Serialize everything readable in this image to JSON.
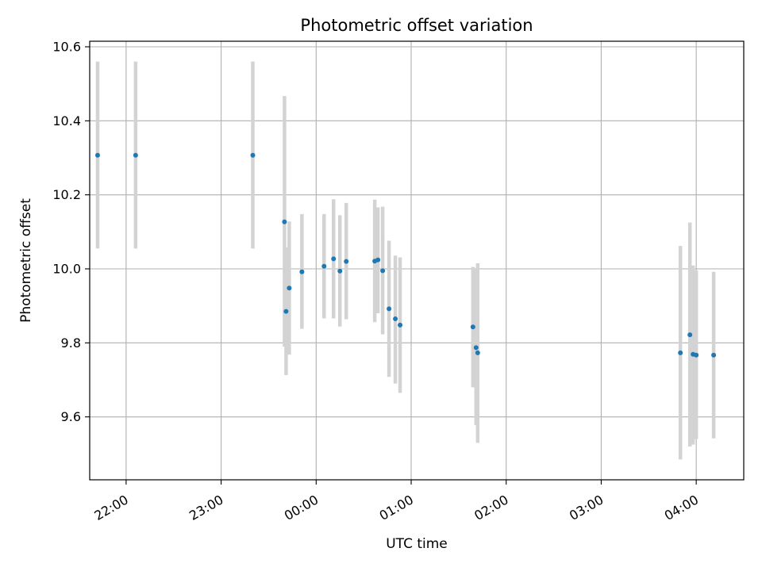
{
  "chart_data": {
    "type": "scatter",
    "title": "Photometric offset variation",
    "xlabel": "UTC time",
    "ylabel": "Photometric offset",
    "x_axis": "time",
    "x_start_time": "21:37",
    "x_end_time": "04:30",
    "xticks": [
      "22:00",
      "23:00",
      "00:00",
      "01:00",
      "02:00",
      "03:00",
      "04:00"
    ],
    "ylim": [
      9.43,
      10.615
    ],
    "yticks": [
      9.6,
      9.8,
      10.0,
      10.2,
      10.4,
      10.6
    ],
    "ytick_labels": [
      "9.6",
      "9.8",
      "10.0",
      "10.2",
      "10.4",
      "10.6"
    ],
    "grid": true,
    "colors": {
      "marker": "#1f77b4",
      "errorbar": "#d3d3d3",
      "grid": "#b0b0b0"
    },
    "points": [
      {
        "time": "21:42",
        "y": 10.307,
        "ylow": 10.055,
        "yhigh": 10.56
      },
      {
        "time": "22:06",
        "y": 10.307,
        "ylow": 10.055,
        "yhigh": 10.56
      },
      {
        "time": "23:20",
        "y": 10.307,
        "ylow": 10.055,
        "yhigh": 10.56
      },
      {
        "time": "23:40",
        "y": 10.127,
        "ylow": 9.79,
        "yhigh": 10.467
      },
      {
        "time": "23:41",
        "y": 9.885,
        "ylow": 9.713,
        "yhigh": 10.058
      },
      {
        "time": "23:43",
        "y": 9.948,
        "ylow": 9.768,
        "yhigh": 10.128
      },
      {
        "time": "23:51",
        "y": 9.992,
        "ylow": 9.838,
        "yhigh": 10.148
      },
      {
        "time": "00:05",
        "y": 10.007,
        "ylow": 9.866,
        "yhigh": 10.148
      },
      {
        "time": "00:11",
        "y": 10.027,
        "ylow": 9.866,
        "yhigh": 10.188
      },
      {
        "time": "00:15",
        "y": 9.994,
        "ylow": 9.844,
        "yhigh": 10.145
      },
      {
        "time": "00:19",
        "y": 10.02,
        "ylow": 9.864,
        "yhigh": 10.178
      },
      {
        "time": "00:37",
        "y": 10.021,
        "ylow": 9.856,
        "yhigh": 10.187
      },
      {
        "time": "00:39",
        "y": 10.024,
        "ylow": 9.88,
        "yhigh": 10.166
      },
      {
        "time": "00:42",
        "y": 9.995,
        "ylow": 9.823,
        "yhigh": 10.168
      },
      {
        "time": "00:46",
        "y": 9.892,
        "ylow": 9.708,
        "yhigh": 10.076
      },
      {
        "time": "00:50",
        "y": 9.865,
        "ylow": 9.69,
        "yhigh": 10.036
      },
      {
        "time": "00:53",
        "y": 9.848,
        "ylow": 9.665,
        "yhigh": 10.031
      },
      {
        "time": "01:39",
        "y": 9.843,
        "ylow": 9.68,
        "yhigh": 10.005
      },
      {
        "time": "01:41",
        "y": 9.787,
        "ylow": 9.578,
        "yhigh": 9.998
      },
      {
        "time": "01:42",
        "y": 9.773,
        "ylow": 9.53,
        "yhigh": 10.015
      },
      {
        "time": "03:50",
        "y": 9.773,
        "ylow": 9.485,
        "yhigh": 10.062
      },
      {
        "time": "03:56",
        "y": 9.822,
        "ylow": 9.52,
        "yhigh": 10.125
      },
      {
        "time": "03:58",
        "y": 9.769,
        "ylow": 9.525,
        "yhigh": 10.009
      },
      {
        "time": "04:00",
        "y": 9.767,
        "ylow": 9.54,
        "yhigh": 9.996
      },
      {
        "time": "04:11",
        "y": 9.767,
        "ylow": 9.542,
        "yhigh": 9.992
      }
    ]
  }
}
